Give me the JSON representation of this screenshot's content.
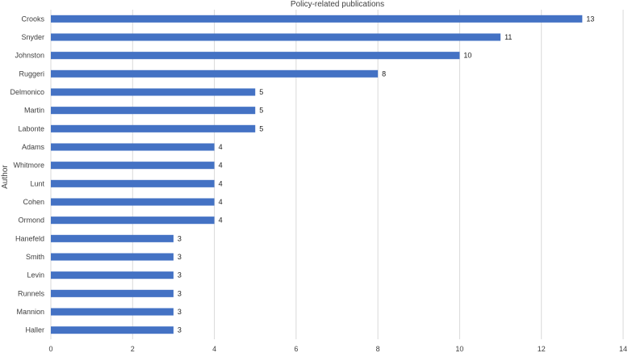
{
  "chart_data": {
    "type": "bar",
    "orientation": "horizontal",
    "title": "Policy-related publications",
    "xlabel": "",
    "ylabel": "Author",
    "categories": [
      "Crooks",
      "Snyder",
      "Johnston",
      "Ruggeri",
      "Delmonico",
      "Martin",
      "Labonte",
      "Adams",
      "Whitmore",
      "Lunt",
      "Cohen",
      "Ormond",
      "Hanefeld",
      "Smith",
      "Levin",
      "Runnels",
      "Mannion",
      "Haller"
    ],
    "values": [
      13,
      11,
      10,
      8,
      5,
      5,
      5,
      4,
      4,
      4,
      4,
      4,
      3,
      3,
      3,
      3,
      3,
      3
    ],
    "xlim": [
      0,
      14
    ],
    "xticks": [
      0,
      2,
      4,
      6,
      8,
      10,
      12,
      14
    ],
    "grid": true,
    "data_labels": true,
    "bar_color": "#4472C4",
    "grid_color": "#d9d9d9"
  }
}
